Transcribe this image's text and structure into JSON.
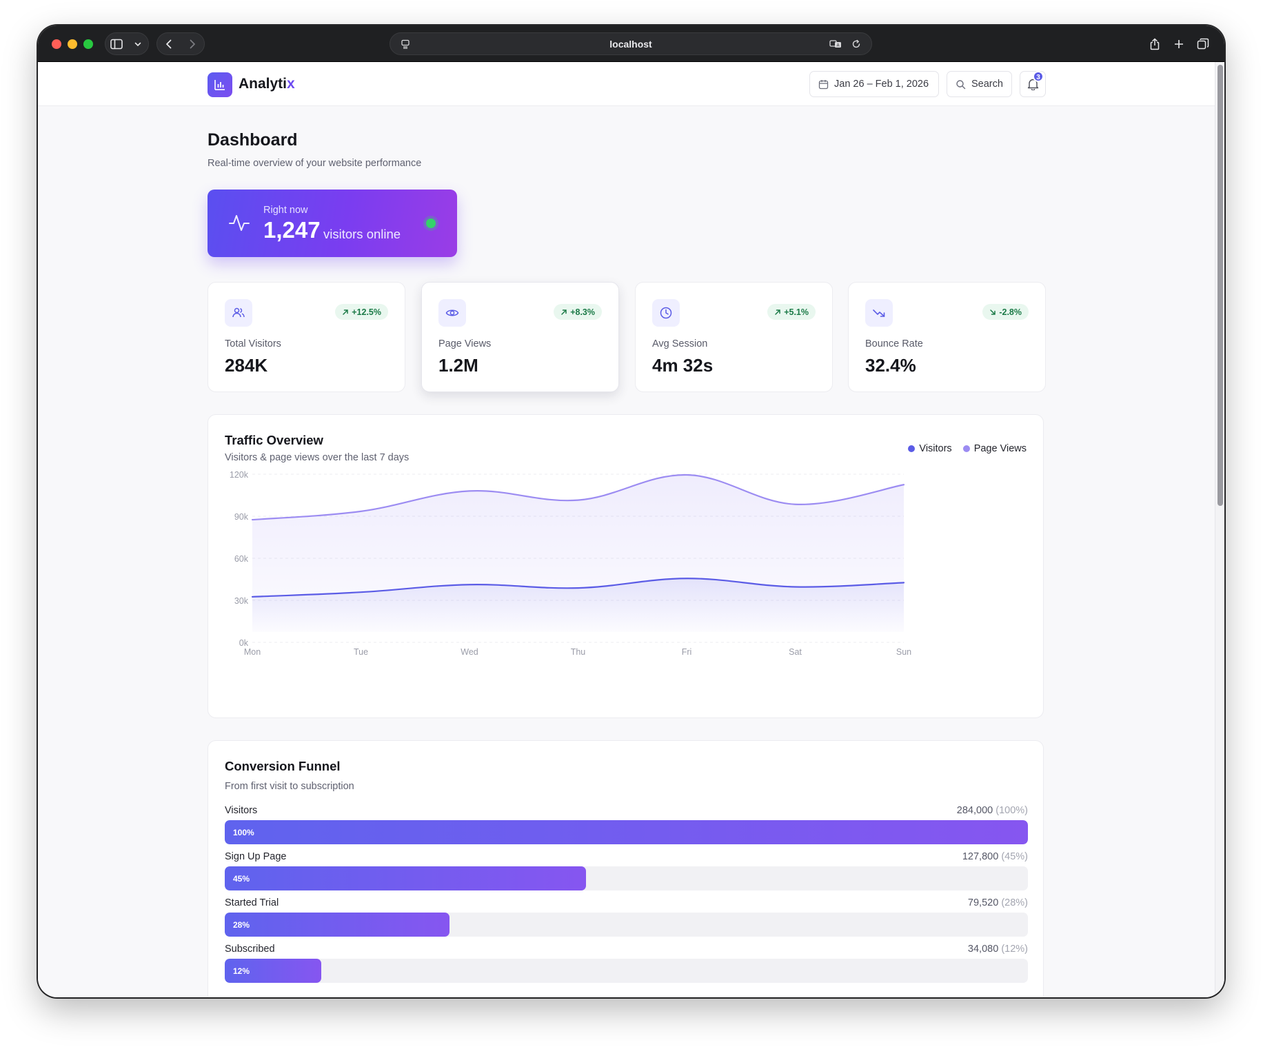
{
  "browser": {
    "url": "localhost"
  },
  "app": {
    "brand_main": "Analyti",
    "brand_accent": "x",
    "date_range": "Jan 26 – Feb 1, 2026",
    "search_label": "Search",
    "notification_count": "3"
  },
  "page": {
    "title": "Dashboard",
    "subtitle": "Real-time overview of your website performance"
  },
  "live": {
    "label": "Right now",
    "count": "1,247",
    "suffix": "visitors online"
  },
  "stats": [
    {
      "label": "Total Visitors",
      "value": "284K",
      "change": "+12.5%",
      "direction": "up",
      "icon": "users-icon"
    },
    {
      "label": "Page Views",
      "value": "1.2M",
      "change": "+8.3%",
      "direction": "up",
      "icon": "eye-icon"
    },
    {
      "label": "Avg Session",
      "value": "4m 32s",
      "change": "+5.1%",
      "direction": "up",
      "icon": "clock-icon"
    },
    {
      "label": "Bounce Rate",
      "value": "32.4%",
      "change": "-2.8%",
      "direction": "down",
      "icon": "trending-down-icon"
    }
  ],
  "traffic": {
    "title": "Traffic Overview",
    "subtitle": "Visitors & page views over the last 7 days",
    "legend": [
      "Visitors",
      "Page Views"
    ]
  },
  "chart_data": {
    "type": "area",
    "categories": [
      "Mon",
      "Tue",
      "Wed",
      "Thu",
      "Fri",
      "Sat",
      "Sun"
    ],
    "y_ticks": [
      "0k",
      "30k",
      "60k",
      "90k",
      "120k"
    ],
    "ylim": [
      0,
      120000
    ],
    "grid": true,
    "legend_position": "top-right",
    "series": [
      {
        "name": "Visitors",
        "color": "#5b5ce6",
        "values": [
          32500,
          35800,
          41200,
          38800,
          45600,
          39600,
          42600
        ]
      },
      {
        "name": "Page Views",
        "color": "#9c8cf2",
        "values": [
          87500,
          93500,
          108000,
          101500,
          119500,
          98500,
          112500
        ]
      }
    ]
  },
  "funnel": {
    "title": "Conversion Funnel",
    "subtitle": "From first visit to subscription",
    "steps": [
      {
        "label": "Visitors",
        "count": "284,000",
        "pct_text": "(100%)",
        "bar_text": "100%",
        "fraction": 1.0
      },
      {
        "label": "Sign Up Page",
        "count": "127,800",
        "pct_text": "(45%)",
        "bar_text": "45%",
        "fraction": 0.45
      },
      {
        "label": "Started Trial",
        "count": "79,520",
        "pct_text": "(28%)",
        "bar_text": "28%",
        "fraction": 0.28
      },
      {
        "label": "Subscribed",
        "count": "34,080",
        "pct_text": "(12%)",
        "bar_text": "12%",
        "fraction": 0.12
      }
    ]
  }
}
